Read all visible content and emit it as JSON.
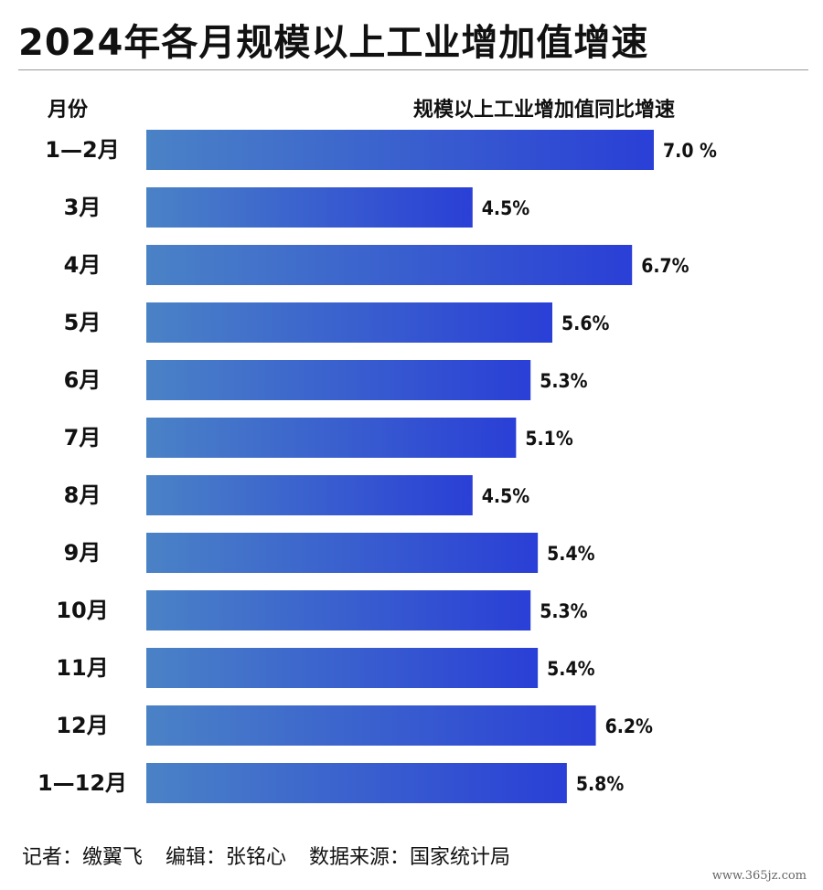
{
  "title": "2024年各月规模以上工业增加值增速",
  "header": {
    "month_col": "月份",
    "value_col": "规模以上工业增加值同比增速"
  },
  "footer": {
    "reporter": "记者：缴翼飞",
    "editor": "编辑：张铭心",
    "source": "数据来源：国家统计局"
  },
  "watermark": "www.365jz.com",
  "colors": {
    "bar_start": "#4a82c6",
    "bar_end": "#2a3fd6"
  },
  "chart_data": {
    "type": "bar",
    "orientation": "horizontal",
    "categories": [
      "1—2月",
      "3月",
      "4月",
      "5月",
      "6月",
      "7月",
      "8月",
      "9月",
      "10月",
      "11月",
      "12月",
      "1—12月"
    ],
    "values": [
      7.0,
      4.5,
      6.7,
      5.6,
      5.3,
      5.1,
      4.5,
      5.4,
      5.3,
      5.4,
      6.2,
      5.8
    ],
    "value_labels": [
      "7.0 %",
      "4.5%",
      "6.7%",
      "5.6%",
      "5.3%",
      "5.1%",
      "4.5%",
      "5.4%",
      "5.3%",
      "5.4%",
      "6.2%",
      "5.8%"
    ],
    "xlabel": "",
    "ylabel": "月份",
    "unit": "%",
    "grid": false
  }
}
